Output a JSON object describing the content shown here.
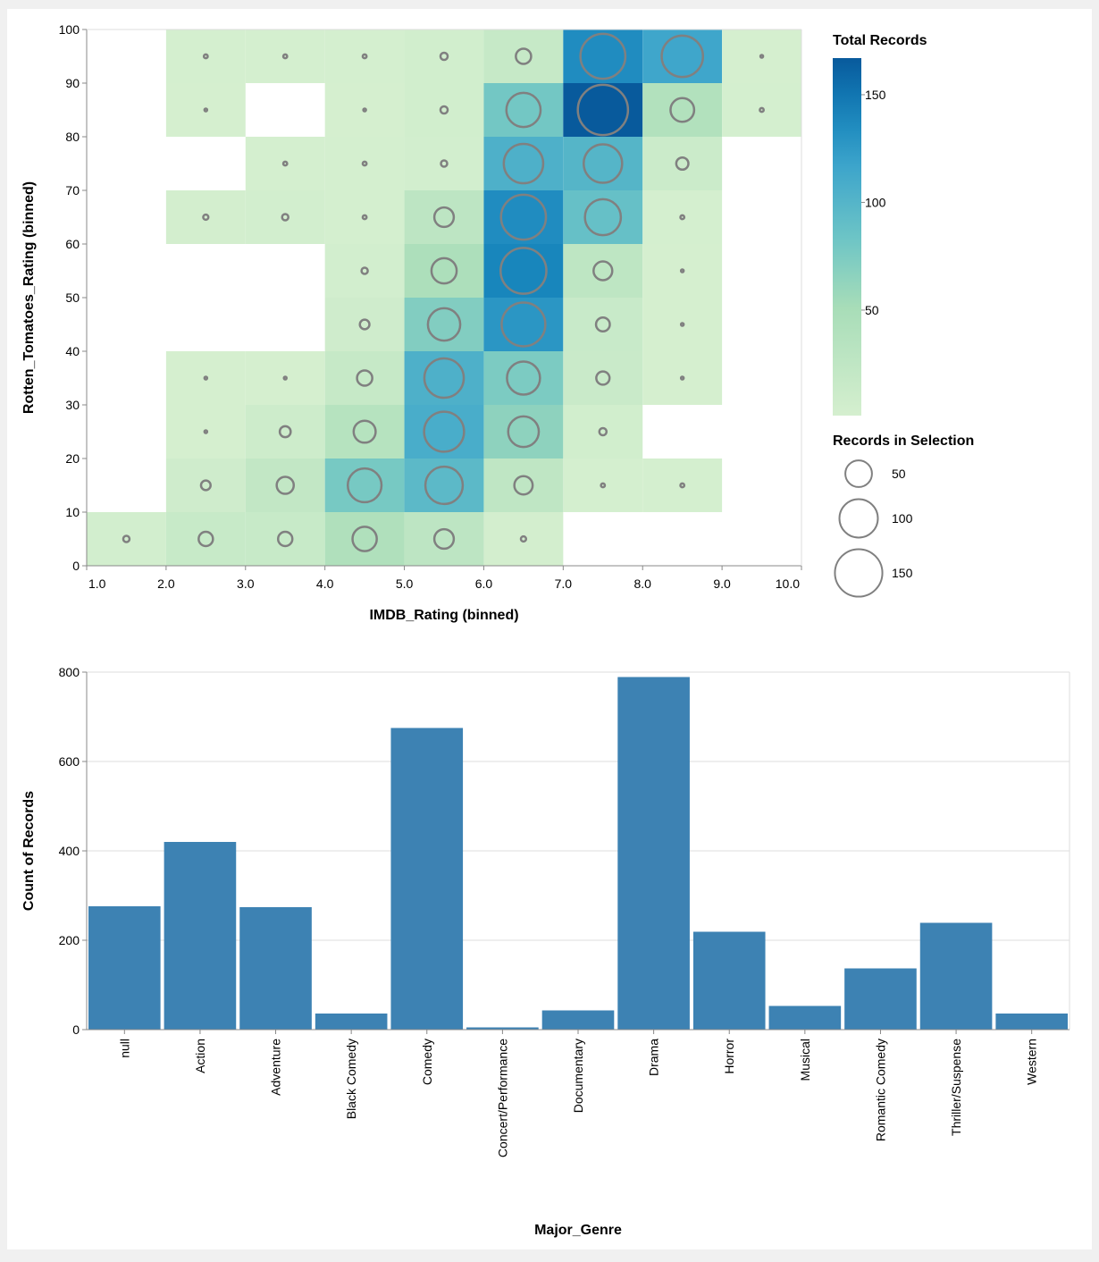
{
  "chart_data": [
    {
      "type": "heatmap",
      "xlabel": "IMDB_Rating (binned)",
      "ylabel": "Rotten_Tomatoes_Rating (binned)",
      "xlim": [
        1,
        10
      ],
      "ylim": [
        0,
        100
      ],
      "x_ticks": [
        "1.0",
        "2.0",
        "3.0",
        "4.0",
        "5.0",
        "6.0",
        "7.0",
        "8.0",
        "9.0",
        "10.0"
      ],
      "y_ticks": [
        "0",
        "10",
        "20",
        "30",
        "40",
        "50",
        "60",
        "70",
        "80",
        "90",
        "100"
      ],
      "color_legend": {
        "title": "Total Records",
        "labels": [
          "150",
          "100",
          "50"
        ],
        "values": [
          150,
          100,
          50
        ],
        "domain": [
          1,
          167
        ],
        "scheme": "greenblue"
      },
      "size_legend": {
        "title": "Records in Selection",
        "labels": [
          "50",
          "100",
          "150"
        ],
        "values": [
          50,
          100,
          150
        ]
      },
      "bin_width": {
        "x": 1,
        "y": 10
      },
      "cells_columns": [
        "imdb_bin_start",
        "rt_bin_start",
        "total_records",
        "records_in_selection"
      ],
      "cells": [
        [
          2,
          90,
          2,
          2
        ],
        [
          3,
          90,
          2,
          2
        ],
        [
          4,
          90,
          2,
          2
        ],
        [
          5,
          90,
          5,
          5
        ],
        [
          6,
          90,
          18,
          18
        ],
        [
          7,
          90,
          135,
          135
        ],
        [
          8,
          90,
          115,
          115
        ],
        [
          9,
          90,
          1,
          1
        ],
        [
          2,
          80,
          1,
          1
        ],
        [
          4,
          80,
          1,
          1
        ],
        [
          5,
          80,
          5,
          5
        ],
        [
          6,
          80,
          80,
          80
        ],
        [
          7,
          80,
          167,
          167
        ],
        [
          8,
          80,
          40,
          40
        ],
        [
          9,
          80,
          2,
          2
        ],
        [
          3,
          70,
          2,
          2
        ],
        [
          4,
          70,
          2,
          2
        ],
        [
          5,
          70,
          4,
          4
        ],
        [
          6,
          70,
          105,
          105
        ],
        [
          7,
          70,
          100,
          100
        ],
        [
          8,
          70,
          12,
          12
        ],
        [
          2,
          60,
          3,
          3
        ],
        [
          3,
          60,
          4,
          4
        ],
        [
          4,
          60,
          2,
          2
        ],
        [
          5,
          60,
          28,
          28
        ],
        [
          6,
          60,
          135,
          135
        ],
        [
          7,
          60,
          88,
          88
        ],
        [
          8,
          60,
          2,
          2
        ],
        [
          4,
          50,
          4,
          4
        ],
        [
          5,
          50,
          45,
          45
        ],
        [
          6,
          50,
          140,
          140
        ],
        [
          7,
          50,
          26,
          26
        ],
        [
          8,
          50,
          1,
          1
        ],
        [
          4,
          40,
          8,
          8
        ],
        [
          5,
          40,
          72,
          72
        ],
        [
          6,
          40,
          128,
          128
        ],
        [
          7,
          40,
          15,
          15
        ],
        [
          8,
          40,
          1,
          1
        ],
        [
          2,
          30,
          1,
          1
        ],
        [
          3,
          30,
          1,
          1
        ],
        [
          4,
          30,
          18,
          18
        ],
        [
          5,
          30,
          105,
          105
        ],
        [
          6,
          30,
          75,
          75
        ],
        [
          7,
          30,
          14,
          14
        ],
        [
          8,
          30,
          1,
          1
        ],
        [
          2,
          20,
          1,
          1
        ],
        [
          3,
          20,
          10,
          10
        ],
        [
          4,
          20,
          35,
          35
        ],
        [
          5,
          20,
          108,
          108
        ],
        [
          6,
          20,
          65,
          65
        ],
        [
          7,
          20,
          5,
          5
        ],
        [
          2,
          10,
          8,
          8
        ],
        [
          3,
          10,
          22,
          22
        ],
        [
          4,
          10,
          78,
          78
        ],
        [
          5,
          10,
          95,
          95
        ],
        [
          6,
          10,
          25,
          25
        ],
        [
          7,
          10,
          2,
          2
        ],
        [
          8,
          10,
          2,
          2
        ],
        [
          1,
          0,
          4,
          4
        ],
        [
          2,
          0,
          16,
          16
        ],
        [
          3,
          0,
          16,
          16
        ],
        [
          4,
          0,
          42,
          42
        ],
        [
          5,
          0,
          28,
          28
        ],
        [
          6,
          0,
          3,
          3
        ]
      ]
    },
    {
      "type": "bar",
      "xlabel": "Major_Genre",
      "ylabel": "Count of Records",
      "ylim": [
        0,
        800
      ],
      "y_ticks": [
        "0",
        "200",
        "400",
        "600",
        "800"
      ],
      "grid": true,
      "color": "#3d82b3",
      "categories": [
        "null",
        "Action",
        "Adventure",
        "Black Comedy",
        "Comedy",
        "Concert/Performance",
        "Documentary",
        "Drama",
        "Horror",
        "Musical",
        "Romantic Comedy",
        "Thriller/Suspense",
        "Western"
      ],
      "values": [
        276,
        420,
        274,
        36,
        675,
        5,
        43,
        789,
        219,
        53,
        137,
        239,
        36
      ]
    }
  ]
}
